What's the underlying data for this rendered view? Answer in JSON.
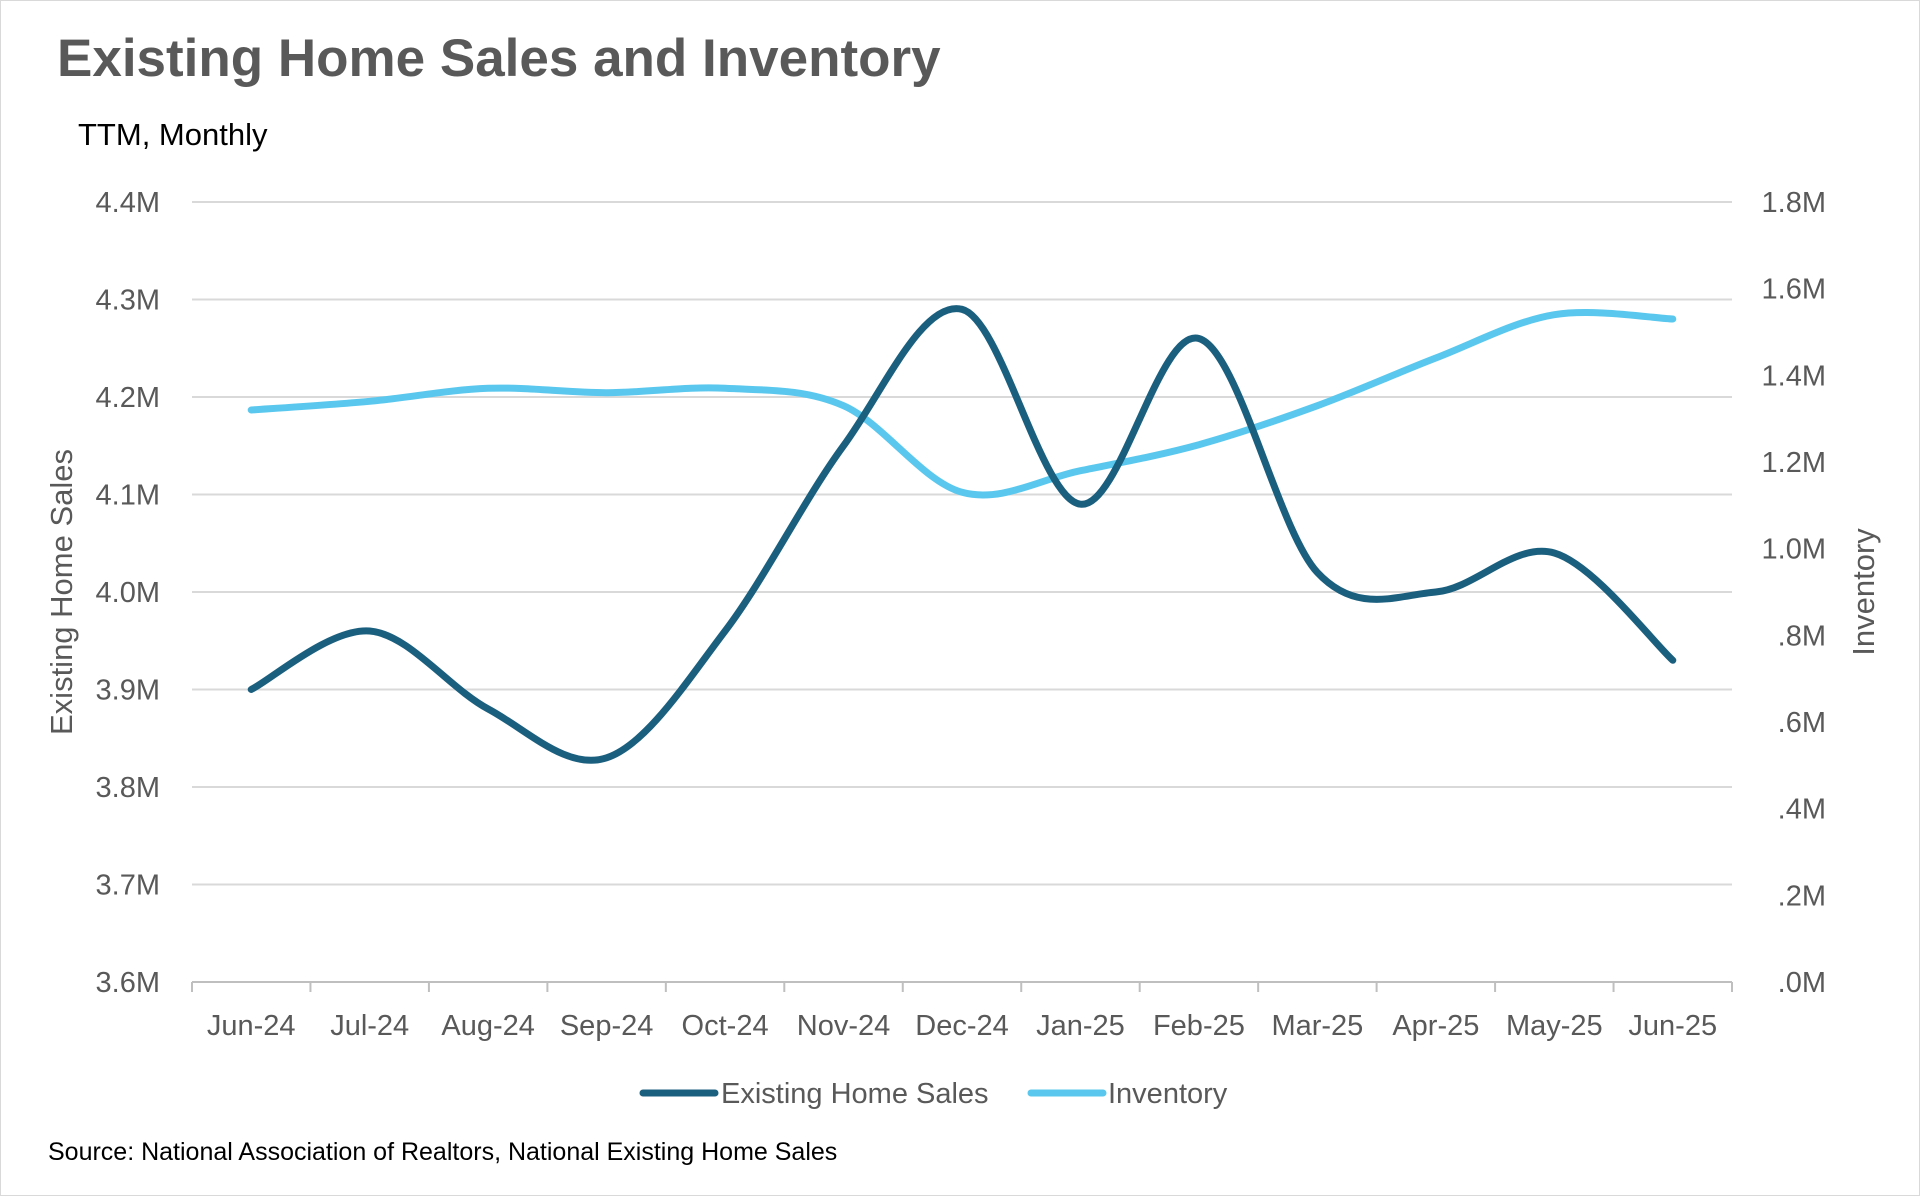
{
  "chart_data": {
    "type": "line",
    "title": "Existing Home Sales and Inventory",
    "subtitle": "TTM, Monthly",
    "ylabel": "Existing Home Sales",
    "y2label": "Inventory",
    "categories": [
      "Jun-24",
      "Jul-24",
      "Aug-24",
      "Sep-24",
      "Oct-24",
      "Nov-24",
      "Dec-24",
      "Jan-25",
      "Feb-25",
      "Mar-25",
      "Apr-25",
      "May-25",
      "Jun-25"
    ],
    "ylim": [
      3600000,
      4400000
    ],
    "y2lim": [
      0,
      1800000
    ],
    "y_ticks": [
      "3.6M",
      "3.7M",
      "3.8M",
      "3.9M",
      "4.0M",
      "4.1M",
      "4.2M",
      "4.3M",
      "4.4M"
    ],
    "y2_ticks": [
      ".0M",
      ".2M",
      ".4M",
      ".6M",
      ".8M",
      "1.0M",
      "1.2M",
      "1.4M",
      "1.6M",
      "1.8M"
    ],
    "series": [
      {
        "name": "Existing Home Sales",
        "axis": "left",
        "color": "#1b5f7f",
        "values": [
          3900000,
          3960000,
          3880000,
          3830000,
          3960000,
          4150000,
          4290000,
          4090000,
          4260000,
          4020000,
          4000000,
          4040000,
          3930000
        ]
      },
      {
        "name": "Inventory",
        "axis": "right",
        "color": "#5ac8ee",
        "values": [
          1320000,
          1340000,
          1370000,
          1360000,
          1370000,
          1330000,
          1130000,
          1180000,
          1240000,
          1330000,
          1440000,
          1540000,
          1530000
        ]
      }
    ],
    "grid": true,
    "legend_position": "bottom",
    "source": "Source: National Association of Realtors, National Existing Home Sales"
  }
}
